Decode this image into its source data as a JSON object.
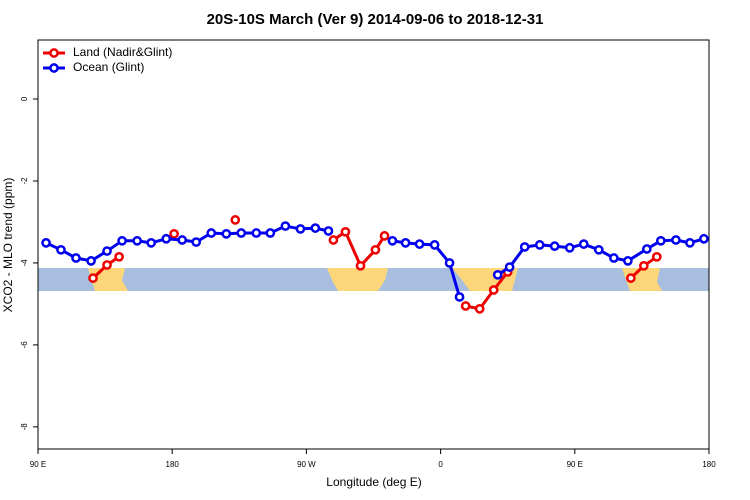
{
  "chart_data": {
    "type": "line",
    "title": "20S-10S March (Ver 9)   2014-09-06 to 2018-12-31",
    "x_label": "Longitude (deg E)",
    "y_label": "XCO2 - MLO trend (ppm)",
    "xlim": [
      90,
      540
    ],
    "ylim": [
      -8.54,
      1.44
    ],
    "xticks": [
      {
        "value": 90,
        "label": "90 E"
      },
      180,
      {
        "value": 270,
        "label": "90 W"
      },
      {
        "value": 360,
        "label": "0"
      },
      {
        "value": 450,
        "label": "90 E"
      },
      {
        "value": 540,
        "label": "180"
      }
    ],
    "yticks": [
      0,
      -2,
      -4,
      -6,
      -8
    ],
    "legend": "top-left",
    "series": [
      {
        "name": "Land (Nadir&Glint)",
        "color": "#ee0000",
        "x": [
          126.9,
          136.3,
          144.4,
          163,
          181.3,
          200,
          222.3,
          255,
          288.1,
          296.2,
          306.3,
          316.3,
          322.4,
          350,
          376.8,
          386.2,
          395.6,
          405.0,
          450,
          487.6,
          496.3,
          505.0
        ],
        "values": [
          -4.37,
          -4.05,
          -3.85,
          null,
          -3.29,
          null,
          -2.95,
          null,
          -3.44,
          -3.24,
          -4.07,
          -3.68,
          -3.34,
          null,
          -5.05,
          -5.12,
          -4.66,
          -4.22,
          null,
          -4.37,
          -4.07,
          -3.85
        ]
      },
      {
        "name": "Ocean (Glint)",
        "color": "#0000ee",
        "x": [
          95.4,
          105.4,
          115.5,
          125.6,
          136.3,
          146.4,
          156.5,
          165.9,
          176.0,
          186.7,
          196.1,
          206.2,
          216.3,
          226.3,
          236.4,
          245.8,
          255.9,
          266.0,
          276.0,
          284.8,
          305,
          327.7,
          336.5,
          345.9,
          356.0,
          366.0,
          372.7,
          385,
          398.3,
          406.3,
          416.4,
          426.5,
          436.5,
          446.6,
          456.0,
          466.1,
          476.2,
          485.6,
          498.3,
          507.7,
          517.8,
          527.2,
          536.6
        ],
        "values": [
          -3.51,
          -3.68,
          -3.88,
          -3.95,
          -3.71,
          -3.46,
          -3.46,
          -3.51,
          -3.41,
          -3.44,
          -3.49,
          -3.27,
          -3.29,
          -3.27,
          -3.27,
          -3.27,
          -3.1,
          -3.17,
          -3.15,
          -3.22,
          null,
          -3.46,
          -3.51,
          -3.54,
          -3.56,
          -4.0,
          -4.83,
          null,
          -4.29,
          -4.1,
          -3.61,
          -3.56,
          -3.59,
          -3.63,
          -3.54,
          -3.68,
          -3.88,
          -3.95,
          -3.66,
          -3.46,
          -3.44,
          -3.51,
          -3.41
        ]
      }
    ]
  }
}
